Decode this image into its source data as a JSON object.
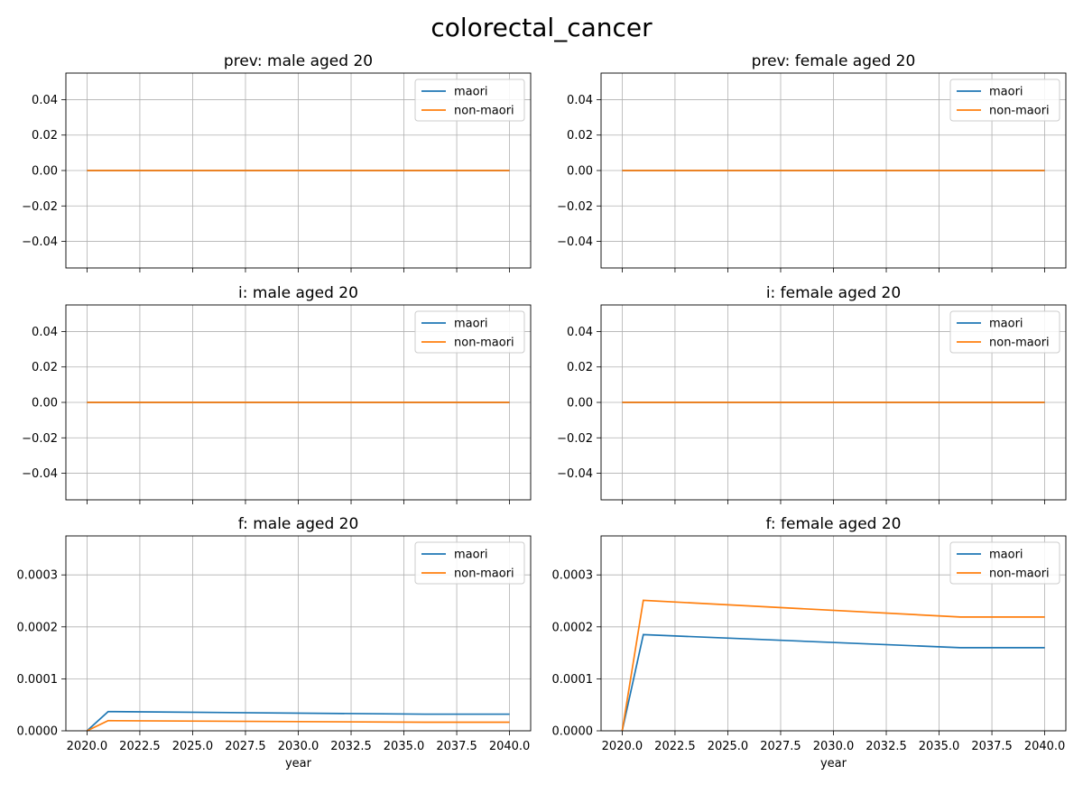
{
  "figure": {
    "suptitle": "colorectal_cancer"
  },
  "colors": {
    "maori": "#1f77b4",
    "non_maori": "#ff7f0e",
    "grid": "#b0b0b0",
    "frame": "#000000",
    "legend_border": "#cccccc"
  },
  "chart_data": [
    {
      "type": "line",
      "title": "prev: male aged 20",
      "xlabel": "",
      "ylabel": "",
      "xlim": [
        2019,
        2041
      ],
      "ylim": [
        -0.055,
        0.055
      ],
      "yticks": [
        "0.04",
        "0.02",
        "0.00",
        "−0.02",
        "−0.04"
      ],
      "ytick_values": [
        0.04,
        0.02,
        0.0,
        -0.02,
        -0.04
      ],
      "xtick_values": [
        2020,
        2022.5,
        2025,
        2027.5,
        2030,
        2032.5,
        2035,
        2037.5,
        2040
      ],
      "xticks": [],
      "grid": true,
      "legend": "top-right",
      "series": [
        {
          "name": "maori",
          "x": [
            2020,
            2040
          ],
          "y": [
            0,
            0
          ]
        },
        {
          "name": "non-maori",
          "x": [
            2020,
            2040
          ],
          "y": [
            0,
            0
          ]
        }
      ]
    },
    {
      "type": "line",
      "title": "prev: female aged 20",
      "xlabel": "",
      "ylabel": "",
      "xlim": [
        2019,
        2041
      ],
      "ylim": [
        -0.055,
        0.055
      ],
      "yticks": [
        "0.04",
        "0.02",
        "0.00",
        "−0.02",
        "−0.04"
      ],
      "ytick_values": [
        0.04,
        0.02,
        0.0,
        -0.02,
        -0.04
      ],
      "xtick_values": [
        2020,
        2022.5,
        2025,
        2027.5,
        2030,
        2032.5,
        2035,
        2037.5,
        2040
      ],
      "xticks": [],
      "grid": true,
      "legend": "top-right",
      "series": [
        {
          "name": "maori",
          "x": [
            2020,
            2040
          ],
          "y": [
            0,
            0
          ]
        },
        {
          "name": "non-maori",
          "x": [
            2020,
            2040
          ],
          "y": [
            0,
            0
          ]
        }
      ]
    },
    {
      "type": "line",
      "title": "i: male aged 20",
      "xlabel": "",
      "ylabel": "",
      "xlim": [
        2019,
        2041
      ],
      "ylim": [
        -0.055,
        0.055
      ],
      "yticks": [
        "0.04",
        "0.02",
        "0.00",
        "−0.02",
        "−0.04"
      ],
      "ytick_values": [
        0.04,
        0.02,
        0.0,
        -0.02,
        -0.04
      ],
      "xtick_values": [
        2020,
        2022.5,
        2025,
        2027.5,
        2030,
        2032.5,
        2035,
        2037.5,
        2040
      ],
      "xticks": [],
      "grid": true,
      "legend": "top-right",
      "series": [
        {
          "name": "maori",
          "x": [
            2020,
            2040
          ],
          "y": [
            0,
            0
          ]
        },
        {
          "name": "non-maori",
          "x": [
            2020,
            2040
          ],
          "y": [
            0,
            0
          ]
        }
      ]
    },
    {
      "type": "line",
      "title": "i: female aged 20",
      "xlabel": "",
      "ylabel": "",
      "xlim": [
        2019,
        2041
      ],
      "ylim": [
        -0.055,
        0.055
      ],
      "yticks": [
        "0.04",
        "0.02",
        "0.00",
        "−0.02",
        "−0.04"
      ],
      "ytick_values": [
        0.04,
        0.02,
        0.0,
        -0.02,
        -0.04
      ],
      "xtick_values": [
        2020,
        2022.5,
        2025,
        2027.5,
        2030,
        2032.5,
        2035,
        2037.5,
        2040
      ],
      "xticks": [],
      "grid": true,
      "legend": "top-right",
      "series": [
        {
          "name": "maori",
          "x": [
            2020,
            2040
          ],
          "y": [
            0,
            0
          ]
        },
        {
          "name": "non-maori",
          "x": [
            2020,
            2040
          ],
          "y": [
            0,
            0
          ]
        }
      ]
    },
    {
      "type": "line",
      "title": "f: male aged 20",
      "xlabel": "year",
      "ylabel": "",
      "xlim": [
        2019,
        2041
      ],
      "ylim": [
        0,
        0.000375
      ],
      "yticks": [
        "0.0003",
        "0.0002",
        "0.0001",
        "0.0000"
      ],
      "ytick_values": [
        0.0003,
        0.0002,
        0.0001,
        0.0
      ],
      "xtick_values": [
        2020,
        2022.5,
        2025,
        2027.5,
        2030,
        2032.5,
        2035,
        2037.5,
        2040
      ],
      "xticks": [
        "2020.0",
        "2022.5",
        "2025.0",
        "2027.5",
        "2030.0",
        "2032.5",
        "2035.0",
        "2037.5",
        "2040.0"
      ],
      "grid": true,
      "legend": "top-right",
      "series": [
        {
          "name": "maori",
          "x": [
            2020,
            2021,
            2036,
            2040
          ],
          "y": [
            0,
            3.7e-05,
            3.2e-05,
            3.2e-05
          ]
        },
        {
          "name": "non-maori",
          "x": [
            2020,
            2021,
            2036,
            2040
          ],
          "y": [
            0,
            1.95e-05,
            1.65e-05,
            1.65e-05
          ]
        }
      ]
    },
    {
      "type": "line",
      "title": "f: female aged 20",
      "xlabel": "year",
      "ylabel": "",
      "xlim": [
        2019,
        2041
      ],
      "ylim": [
        0,
        0.000375
      ],
      "yticks": [
        "0.0003",
        "0.0002",
        "0.0001",
        "0.0000"
      ],
      "ytick_values": [
        0.0003,
        0.0002,
        0.0001,
        0.0
      ],
      "xtick_values": [
        2020,
        2022.5,
        2025,
        2027.5,
        2030,
        2032.5,
        2035,
        2037.5,
        2040
      ],
      "xticks": [
        "2020.0",
        "2022.5",
        "2025.0",
        "2027.5",
        "2030.0",
        "2032.5",
        "2035.0",
        "2037.5",
        "2040.0"
      ],
      "grid": true,
      "legend": "top-right",
      "series": [
        {
          "name": "maori",
          "x": [
            2020,
            2021,
            2036,
            2040
          ],
          "y": [
            0,
            0.000185,
            0.00016,
            0.00016
          ]
        },
        {
          "name": "non-maori",
          "x": [
            2020,
            2021,
            2036,
            2040
          ],
          "y": [
            0,
            0.000251,
            0.000219,
            0.000219
          ]
        }
      ]
    }
  ]
}
